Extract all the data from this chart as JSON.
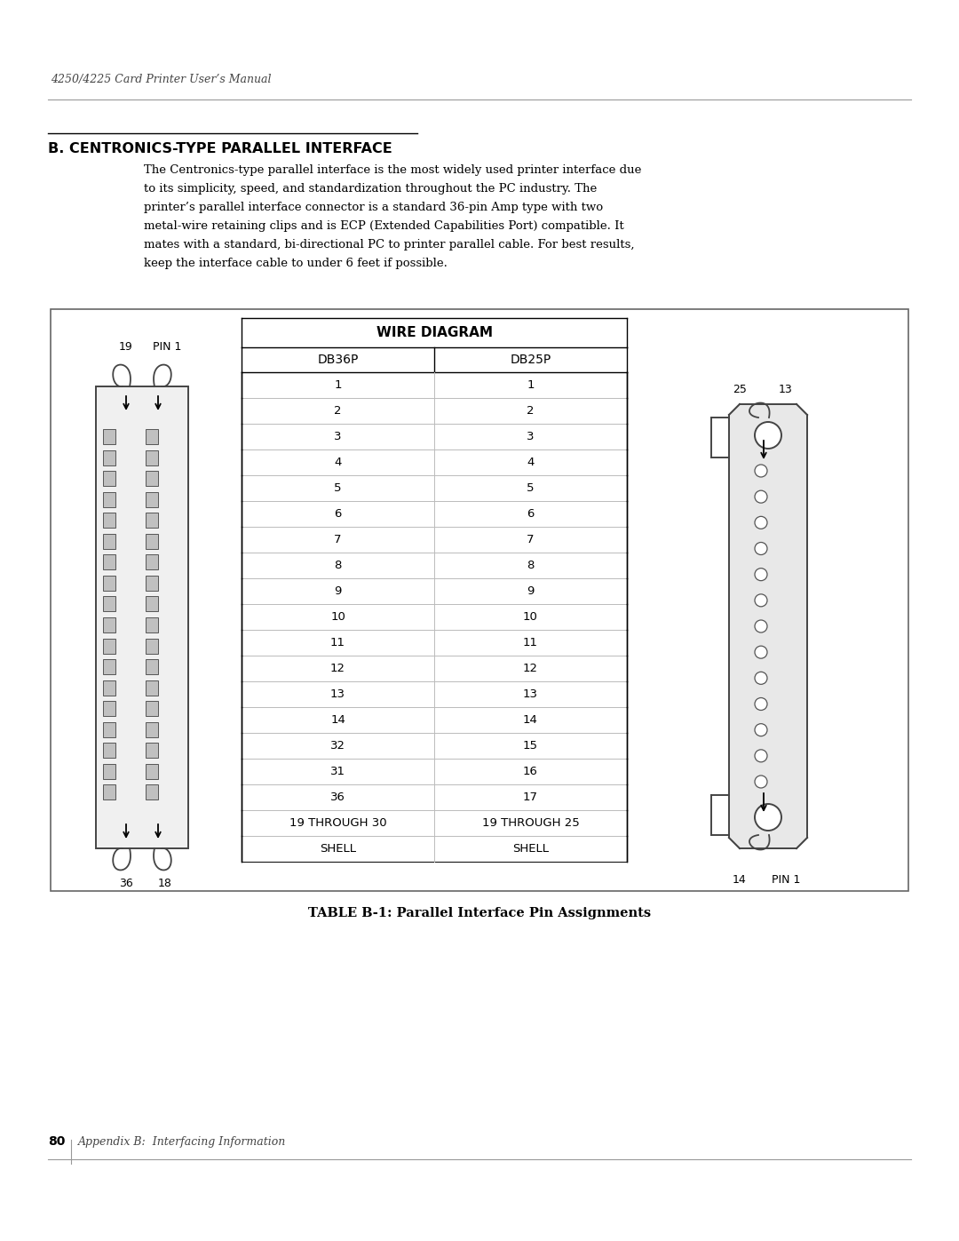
{
  "header_italic": "4250/4225 Card Printer User’s Manual",
  "section_title": "B. CENTRONICS-TYPE PARALLEL INTERFACE",
  "body_text_lines": [
    "The Centronics-type parallel interface is the most widely used printer interface due",
    "to its simplicity, speed, and standardization throughout the PC industry. The",
    "printer’s parallel interface connector is a standard 36-pin Amp type with two",
    "metal-wire retaining clips and is ECP (Extended Capabilities Port) compatible. It",
    "mates with a standard, bi-directional PC to printer parallel cable. For best results,",
    "keep the interface cable to under 6 feet if possible."
  ],
  "table_title": "WIRE DIAGRAM",
  "col1_header": "DB36P",
  "col2_header": "DB25P",
  "table_rows": [
    [
      "1",
      "1"
    ],
    [
      "2",
      "2"
    ],
    [
      "3",
      "3"
    ],
    [
      "4",
      "4"
    ],
    [
      "5",
      "5"
    ],
    [
      "6",
      "6"
    ],
    [
      "7",
      "7"
    ],
    [
      "8",
      "8"
    ],
    [
      "9",
      "9"
    ],
    [
      "10",
      "10"
    ],
    [
      "11",
      "11"
    ],
    [
      "12",
      "12"
    ],
    [
      "13",
      "13"
    ],
    [
      "14",
      "14"
    ],
    [
      "32",
      "15"
    ],
    [
      "31",
      "16"
    ],
    [
      "36",
      "17"
    ],
    [
      "19 THROUGH 30",
      "19 THROUGH 25"
    ],
    [
      "SHELL",
      "SHELL"
    ]
  ],
  "caption": "TABLE B-1: Parallel Interface Pin Assignments",
  "footer_bold": "80",
  "footer_italic": "Appendix B:  Interfacing Information",
  "bg_color": "#ffffff",
  "text_color": "#000000",
  "gray_line": "#999999",
  "dark_line": "#222222",
  "connector_color": "#444444",
  "pin_fill": "#cccccc",
  "outer_box_color": "#666666"
}
